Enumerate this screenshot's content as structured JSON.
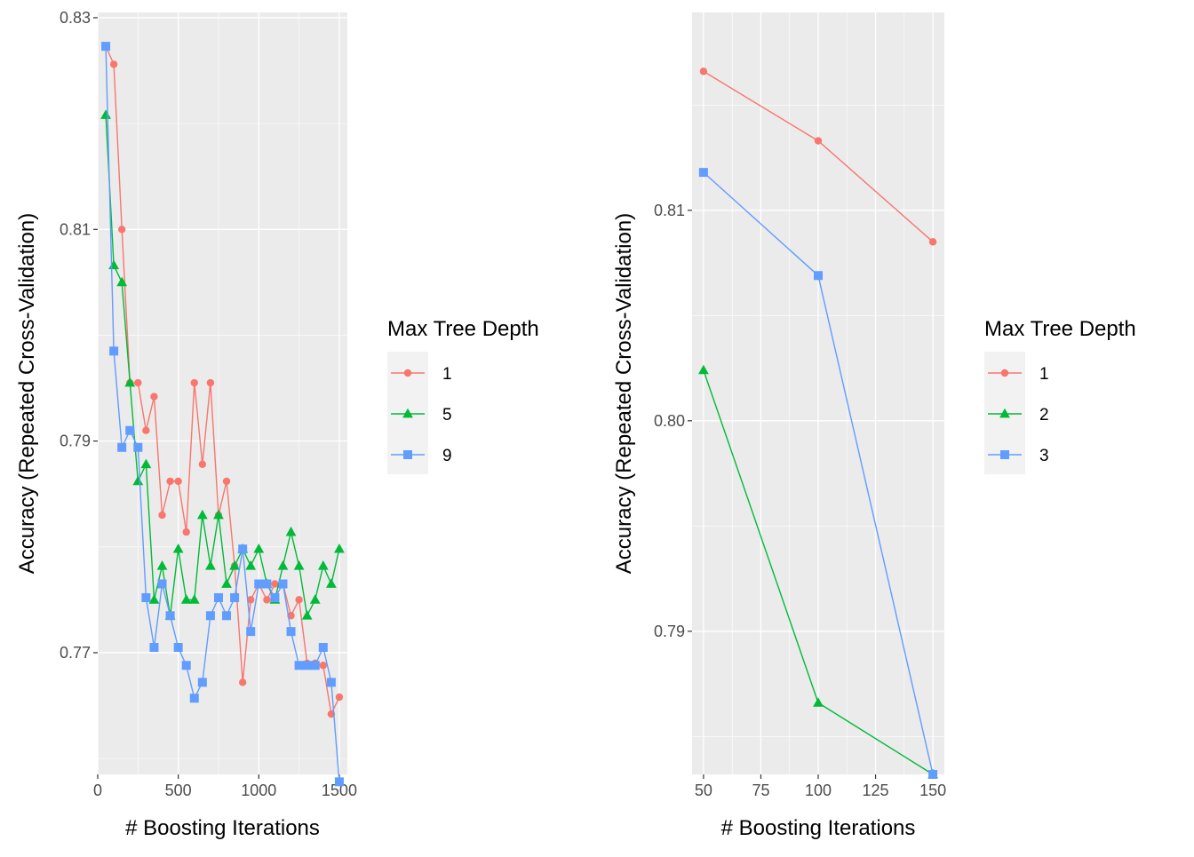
{
  "colors": {
    "panel_bg": "#EBEBEB",
    "grid_major": "#FFFFFF",
    "axis_text": "#4D4D4D",
    "title_text": "#000000",
    "legend_key_bg": "#F2F2F2",
    "series": [
      "#F8766D",
      "#00BA38",
      "#619CFF"
    ]
  },
  "chart_data": [
    {
      "type": "line",
      "xlabel": "# Boosting Iterations",
      "ylabel": "Accuracy (Repeated Cross-Validation)",
      "xlim": [
        0,
        1550
      ],
      "ylim": [
        0.7585,
        0.8305
      ],
      "x_ticks": [
        0,
        500,
        1000,
        1500
      ],
      "x_tick_labels": [
        "0",
        "500",
        "1000",
        "1500"
      ],
      "y_ticks": [
        0.77,
        0.79,
        0.81,
        0.83
      ],
      "y_tick_labels": [
        "0.77",
        "0.79",
        "0.81",
        "0.83"
      ],
      "legend": {
        "title": "Max Tree Depth",
        "position": "right"
      },
      "series": [
        {
          "name": "1",
          "marker": "circle",
          "x": [
            50,
            100,
            150,
            200,
            250,
            300,
            350,
            400,
            450,
            500,
            550,
            600,
            650,
            700,
            750,
            800,
            850,
            900,
            950,
            1000,
            1050,
            1100,
            1150,
            1200,
            1250,
            1300,
            1350,
            1400,
            1450,
            1500
          ],
          "y": [
            0.8273,
            0.8256,
            0.81,
            0.7955,
            0.7955,
            0.791,
            0.7942,
            0.783,
            0.7862,
            0.7862,
            0.7814,
            0.7955,
            0.7878,
            0.7955,
            0.783,
            0.7862,
            0.7782,
            0.7672,
            0.775,
            0.7765,
            0.775,
            0.7765,
            0.7765,
            0.7735,
            0.775,
            0.769,
            0.769,
            0.7688,
            0.7642,
            0.7658
          ]
        },
        {
          "name": "5",
          "marker": "triangle",
          "x": [
            50,
            100,
            150,
            200,
            250,
            300,
            350,
            400,
            450,
            500,
            550,
            600,
            650,
            700,
            750,
            800,
            850,
            900,
            950,
            1000,
            1050,
            1100,
            1150,
            1200,
            1250,
            1300,
            1350,
            1400,
            1450,
            1500
          ],
          "y": [
            0.8208,
            0.8066,
            0.805,
            0.7955,
            0.7862,
            0.7878,
            0.775,
            0.7782,
            0.7735,
            0.7798,
            0.775,
            0.775,
            0.783,
            0.7782,
            0.783,
            0.7765,
            0.7782,
            0.7798,
            0.7782,
            0.7798,
            0.7765,
            0.775,
            0.7782,
            0.7814,
            0.7782,
            0.7735,
            0.775,
            0.7782,
            0.7765,
            0.7798
          ]
        },
        {
          "name": "9",
          "marker": "square",
          "x": [
            50,
            100,
            150,
            200,
            250,
            300,
            350,
            400,
            450,
            500,
            550,
            600,
            650,
            700,
            750,
            800,
            850,
            900,
            950,
            1000,
            1050,
            1100,
            1150,
            1200,
            1250,
            1300,
            1350,
            1400,
            1450,
            1500
          ],
          "y": [
            0.8273,
            0.7985,
            0.7894,
            0.791,
            0.7894,
            0.7752,
            0.7705,
            0.7765,
            0.7735,
            0.7705,
            0.7688,
            0.7657,
            0.7672,
            0.7735,
            0.7752,
            0.7735,
            0.7752,
            0.7798,
            0.772,
            0.7765,
            0.7765,
            0.7752,
            0.7765,
            0.772,
            0.7688,
            0.7688,
            0.7688,
            0.7705,
            0.7672,
            0.7578
          ]
        }
      ]
    },
    {
      "type": "line",
      "xlabel": "# Boosting Iterations",
      "ylabel": "Accuracy (Repeated Cross-Validation)",
      "xlim": [
        45,
        155
      ],
      "ylim": [
        0.7832,
        0.8194
      ],
      "x_ticks": [
        50,
        75,
        100,
        125,
        150
      ],
      "x_tick_labels": [
        "50",
        "75",
        "100",
        "125",
        "150"
      ],
      "y_ticks": [
        0.79,
        0.8,
        0.81
      ],
      "y_tick_labels": [
        "0.79",
        "0.80",
        "0.81"
      ],
      "legend": {
        "title": "Max Tree Depth",
        "position": "right"
      },
      "series": [
        {
          "name": "1",
          "marker": "circle",
          "x": [
            50,
            100,
            150
          ],
          "y": [
            0.8166,
            0.8133,
            0.8085
          ]
        },
        {
          "name": "2",
          "marker": "triangle",
          "x": [
            50,
            100,
            150
          ],
          "y": [
            0.8024,
            0.7866,
            0.7832
          ]
        },
        {
          "name": "3",
          "marker": "square",
          "x": [
            50,
            100,
            150
          ],
          "y": [
            0.8118,
            0.8069,
            0.7832
          ]
        }
      ]
    }
  ]
}
